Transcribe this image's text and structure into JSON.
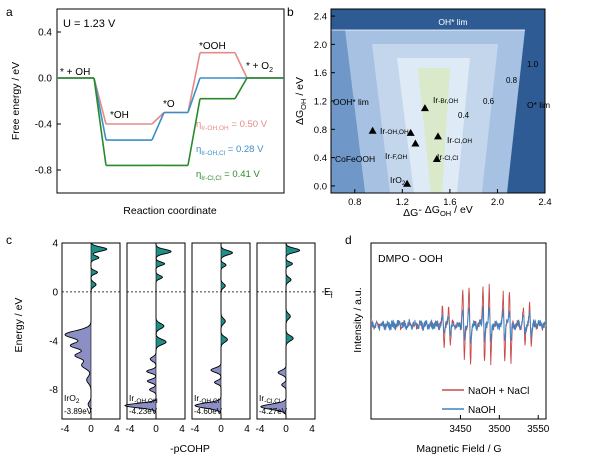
{
  "panels": [
    {
      "letter": "a",
      "type": "line",
      "potential_label": "U = 1.23 V",
      "ylabel": "Free energy / eV",
      "xlabel": "Reaction coordinate",
      "ylim": [
        -1.0,
        0.6
      ],
      "yticks": [
        "0.4",
        "0.0",
        "-0.4",
        "-0.8"
      ],
      "ytick_values": [
        0.4,
        0.0,
        -0.4,
        -0.8
      ],
      "states": [
        "* + OH",
        "*OH",
        "*O",
        "*OOH",
        "* + O2"
      ],
      "state_labels": {
        "s0": "* + OH",
        "s1": "*OH",
        "s2": "*O",
        "s3": "*OOH",
        "s4": "* + O"
      },
      "o2_subscript": "2",
      "series": [
        {
          "name_main": "η",
          "name_sub": "Ir-OH,OH",
          "value_text": " = 0.50 V",
          "color": "#e58a8a",
          "values": [
            0.0,
            -0.4,
            -0.3,
            0.22,
            0.0
          ]
        },
        {
          "name_main": "η",
          "name_sub": "Ir-OH,Cl",
          "value_text": " = 0.28 V",
          "color": "#3a8fc8",
          "values": [
            0.0,
            -0.54,
            -0.3,
            0.0,
            0.0
          ]
        },
        {
          "name_main": "η",
          "name_sub": "Ir-Cl,Cl",
          "value_text": " = 0.41 V",
          "color": "#2a8a2a",
          "values": [
            0.0,
            -0.76,
            -0.76,
            -0.18,
            0.0
          ]
        }
      ]
    },
    {
      "letter": "b",
      "type": "scatter",
      "xlabel_main": "ΔG",
      "xlabel_sub1": "O",
      "xlabel_mid": "- ΔG",
      "xlabel_sub2": "OH",
      "xlabel_unit": " / eV",
      "ylabel_main": "ΔG",
      "ylabel_sub": "OH",
      "ylabel_unit": " / eV",
      "xlim": [
        0.6,
        2.4
      ],
      "ylim": [
        -0.1,
        2.5
      ],
      "xticks": [
        "0.8",
        "1.2",
        "1.6",
        "2.0",
        "2.4"
      ],
      "xtick_values": [
        0.8,
        1.2,
        1.6,
        2.0,
        2.4
      ],
      "yticks": [
        "0.0",
        "0.4",
        "0.8",
        "1.2",
        "1.6",
        "2.0",
        "2.4"
      ],
      "ytick_values": [
        0.0,
        0.4,
        0.8,
        1.2,
        1.6,
        2.0,
        2.4
      ],
      "region_labels": {
        "oh_lim": "OH* lim",
        "ooh_lim": "OOH* lim",
        "o_lim": "O* lim"
      },
      "contour_labels": [
        "1.0",
        "0.8",
        "0.6",
        "0.4"
      ],
      "point_labels": {
        "irbroh_main": "Ir",
        "irbroh_sub": "-Br,OH",
        "irohoh_main": "Ir",
        "irohoh_sub": "-OH,OH",
        "irfoh_main": "Ir",
        "irfoh_sub": "-F,OH",
        "irlcloh_main": "Ir",
        "irlcloh_sub": "-Cl,OH",
        "irclcl_main": "Ir",
        "irclcl_sub": "-Cl,Cl",
        "cofeooh": "CoFeOOH",
        "iro2_main": "IrO",
        "iro2_sub": "2"
      },
      "points": [
        {
          "name": "CoFeOOH",
          "x": 0.95,
          "y": 0.78
        },
        {
          "name": "IrO2",
          "x": 1.24,
          "y": 0.03
        },
        {
          "name": "Ir-OH,OH",
          "x": 1.27,
          "y": 0.75
        },
        {
          "name": "Ir-F,OH",
          "x": 1.31,
          "y": 0.6
        },
        {
          "name": "Ir-Br,OH",
          "x": 1.39,
          "y": 1.1
        },
        {
          "name": "Ir-Cl,OH",
          "x": 1.5,
          "y": 0.7
        },
        {
          "name": "Ir-Cl,Cl",
          "x": 1.49,
          "y": 0.38
        }
      ]
    },
    {
      "letter": "c",
      "type": "area",
      "ylabel": "Energy / eV",
      "xlabel": "-pCOHP",
      "ef_label": "E",
      "ef_sub": "f",
      "ylim": [
        -10.4,
        4.0
      ],
      "yticks": [
        "4",
        "0",
        "-4",
        "-8"
      ],
      "ytick_values": [
        4,
        0,
        -4,
        -8
      ],
      "xticks": [
        "-4",
        "0",
        "4"
      ],
      "subpanels": [
        {
          "label_main": "IrO",
          "label_sub": "2",
          "icohp": "-3.89eV"
        },
        {
          "label_main": "Ir",
          "label_sub": "-OH,OH",
          "icohp": "-4.23eV"
        },
        {
          "label_main": "Ir",
          "label_sub": "-OH,Cl",
          "icohp": "-4.60eV"
        },
        {
          "label_main": "Ir",
          "label_sub": "-Cl,Cl",
          "icohp": "-4.27eV"
        }
      ],
      "colors": {
        "positive": "#1f8f87",
        "negative": "#8b8fc4"
      }
    },
    {
      "letter": "d",
      "type": "line",
      "title": "DMPO - OOH",
      "ylabel": "Intensity / a.u.",
      "xlabel": "Magnetic Field / G",
      "xlim": [
        3335,
        3560
      ],
      "xticks": [
        "3450",
        "3500",
        "3550"
      ],
      "xtick_values": [
        3450,
        3500,
        3550
      ],
      "series": [
        {
          "name": "NaOH + NaCl",
          "color": "#c84b4b"
        },
        {
          "name": "NaOH",
          "color": "#3a84c4"
        }
      ],
      "peak_fields": [
        3428,
        3436,
        3454,
        3462,
        3480,
        3488,
        3506,
        3514,
        3532,
        3540
      ]
    }
  ]
}
